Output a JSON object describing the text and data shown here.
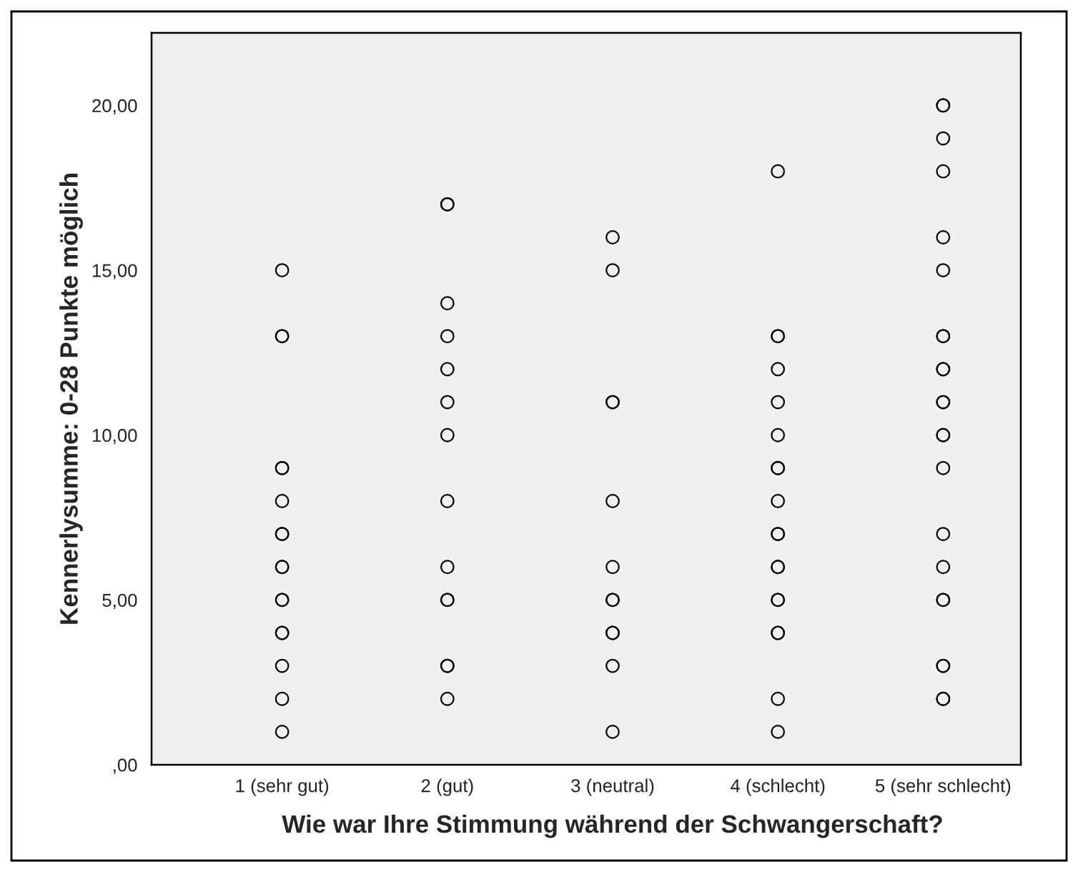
{
  "chart_data": {
    "type": "scatter",
    "xlabel": "Wie war Ihre Stimmung während der Schwangerschaft?",
    "ylabel": "Kennerlysumme: 0-28 Punkte möglich",
    "categories": [
      "1 (sehr gut)",
      "2 (gut)",
      "3 (neutral)",
      "4 (schlecht)",
      "5 (sehr schlecht)"
    ],
    "series": [
      {
        "color": "#000000",
        "x": [
          "1 (sehr gut)",
          "1 (sehr gut)",
          "1 (sehr gut)",
          "1 (sehr gut)",
          "1 (sehr gut)",
          "1 (sehr gut)",
          "1 (sehr gut)",
          "1 (sehr gut)",
          "1 (sehr gut)",
          "1 (sehr gut)",
          "1 (sehr gut)",
          "1 (sehr gut)",
          "1 (sehr gut)",
          "1 (sehr gut)",
          "1 (sehr gut)",
          "1 (sehr gut)",
          "1 (sehr gut)",
          "2 (gut)",
          "2 (gut)",
          "2 (gut)",
          "2 (gut)",
          "2 (gut)",
          "2 (gut)",
          "2 (gut)",
          "2 (gut)",
          "2 (gut)",
          "2 (gut)",
          "2 (gut)",
          "2 (gut)",
          "2 (gut)",
          "2 (gut)",
          "3 (neutral)",
          "3 (neutral)",
          "3 (neutral)",
          "3 (neutral)",
          "3 (neutral)",
          "3 (neutral)",
          "3 (neutral)",
          "3 (neutral)",
          "3 (neutral)",
          "3 (neutral)",
          "3 (neutral)",
          "3 (neutral)",
          "4 (schlecht)",
          "4 (schlecht)",
          "4 (schlecht)",
          "4 (schlecht)",
          "4 (schlecht)",
          "4 (schlecht)",
          "4 (schlecht)",
          "4 (schlecht)",
          "4 (schlecht)",
          "4 (schlecht)",
          "4 (schlecht)",
          "4 (schlecht)",
          "4 (schlecht)",
          "4 (schlecht)",
          "4 (schlecht)",
          "4 (schlecht)",
          "4 (schlecht)",
          "4 (schlecht)",
          "4 (schlecht)",
          "5 (sehr schlecht)",
          "5 (sehr schlecht)",
          "5 (sehr schlecht)",
          "5 (sehr schlecht)",
          "5 (sehr schlecht)",
          "5 (sehr schlecht)",
          "5 (sehr schlecht)",
          "5 (sehr schlecht)",
          "5 (sehr schlecht)",
          "5 (sehr schlecht)",
          "5 (sehr schlecht)",
          "5 (sehr schlecht)",
          "5 (sehr schlecht)",
          "5 (sehr schlecht)",
          "5 (sehr schlecht)",
          "5 (sehr schlecht)",
          "5 (sehr schlecht)",
          "5 (sehr schlecht)",
          "5 (sehr schlecht)",
          "5 (sehr schlecht)",
          "5 (sehr schlecht)",
          "5 (sehr schlecht)",
          "5 (sehr schlecht)"
        ],
        "values": [
          15,
          13,
          13,
          9,
          9,
          8,
          7,
          7,
          6,
          6,
          5,
          5,
          4,
          4,
          3,
          2,
          1,
          17,
          17,
          14,
          13,
          12,
          11,
          10,
          8,
          6,
          5,
          5,
          3,
          3,
          2,
          16,
          15,
          11,
          11,
          8,
          6,
          5,
          5,
          4,
          4,
          3,
          1,
          18,
          13,
          13,
          12,
          11,
          10,
          9,
          9,
          8,
          7,
          7,
          6,
          6,
          5,
          5,
          4,
          4,
          2,
          1,
          20,
          20,
          19,
          18,
          16,
          15,
          13,
          13,
          12,
          12,
          11,
          11,
          10,
          10,
          9,
          7,
          6,
          5,
          5,
          3,
          3,
          2,
          2
        ]
      }
    ],
    "ylim": [
      0,
      22.2
    ],
    "yticks": [
      {
        "value": 0,
        "label": ",00"
      },
      {
        "value": 5,
        "label": "5,00"
      },
      {
        "value": 10,
        "label": "10,00"
      },
      {
        "value": 15,
        "label": "15,00"
      },
      {
        "value": 20,
        "label": "20,00"
      }
    ],
    "marker": "circle"
  }
}
